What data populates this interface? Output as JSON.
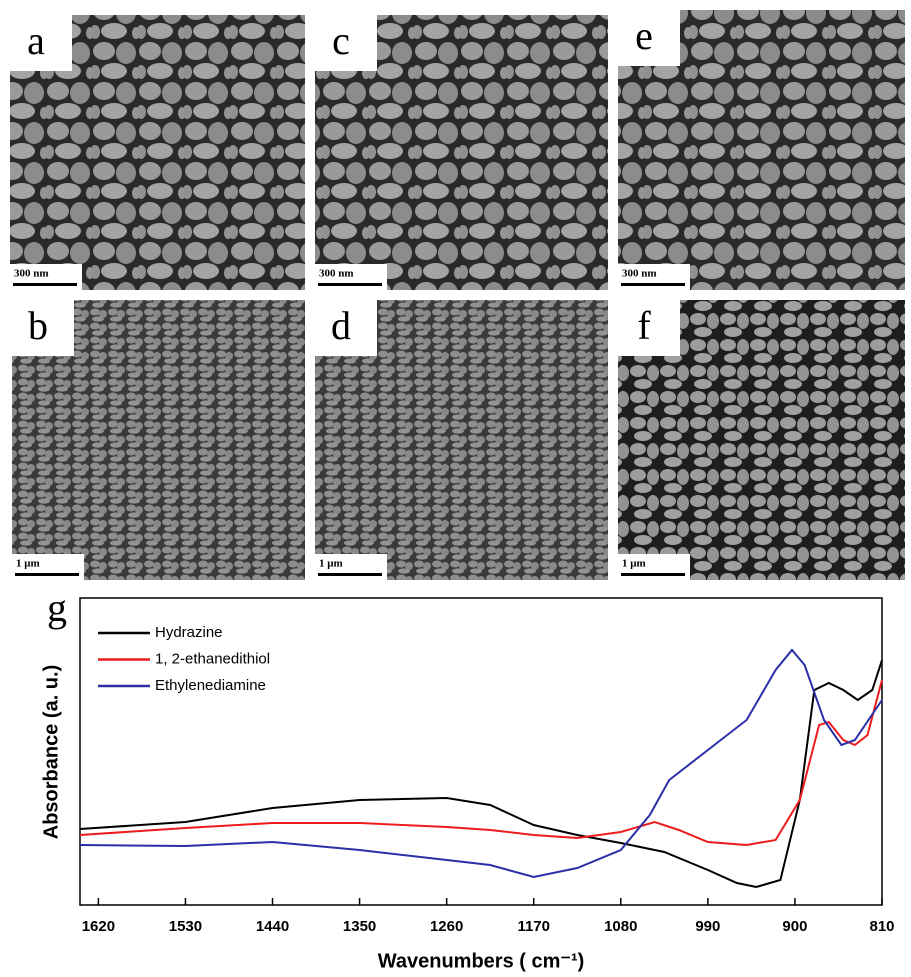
{
  "panels": [
    {
      "label": "a",
      "scale_bar": "300 nm"
    },
    {
      "label": "b",
      "scale_bar": "1 μm"
    },
    {
      "label": "c",
      "scale_bar": "300 nm"
    },
    {
      "label": "d",
      "scale_bar": "1 μm"
    },
    {
      "label": "e",
      "scale_bar": "300 nm"
    },
    {
      "label": "f",
      "scale_bar": "1 μm"
    }
  ],
  "chart_data": {
    "type": "line",
    "panel_label": "g",
    "xlabel": "Wavenumbers ( cm⁻¹)",
    "ylabel": "Absorbance (a. u.)",
    "xlim": [
      1639,
      810
    ],
    "ylim": [
      0,
      307
    ],
    "xticks": [
      1620,
      1530,
      1440,
      1350,
      1260,
      1170,
      1080,
      990,
      900,
      810
    ],
    "series": [
      {
        "name": "Hydrazine",
        "color": "#000000",
        "x": [
          1639,
          1530,
          1440,
          1350,
          1260,
          1215,
          1170,
          1125,
          1080,
          1035,
          990,
          960,
          940,
          915,
          895,
          880,
          865,
          850,
          835,
          820,
          810
        ],
        "values": [
          76,
          83,
          97,
          105,
          107,
          100,
          80,
          70,
          62,
          53,
          35,
          22,
          18,
          25,
          105,
          215,
          222,
          215,
          205,
          215,
          245
        ]
      },
      {
        "name": "1, 2-ethanedithiol",
        "color": "#ee1c1c",
        "x": [
          1639,
          1530,
          1440,
          1350,
          1260,
          1215,
          1170,
          1125,
          1080,
          1045,
          1020,
          990,
          950,
          920,
          895,
          875,
          865,
          850,
          838,
          825,
          810
        ],
        "values": [
          70,
          77,
          82,
          82,
          78,
          75,
          70,
          67,
          73,
          83,
          75,
          63,
          60,
          65,
          105,
          180,
          183,
          165,
          160,
          170,
          225
        ]
      },
      {
        "name": "Ethylenediamine",
        "color": "#2b2fa8",
        "x": [
          1639,
          1530,
          1440,
          1350,
          1260,
          1215,
          1170,
          1125,
          1080,
          1050,
          1030,
          990,
          950,
          920,
          903,
          890,
          870,
          852,
          838,
          810
        ],
        "values": [
          60,
          59,
          63,
          55,
          45,
          40,
          28,
          37,
          55,
          90,
          125,
          155,
          185,
          235,
          255,
          240,
          185,
          160,
          165,
          205
        ]
      }
    ]
  }
}
